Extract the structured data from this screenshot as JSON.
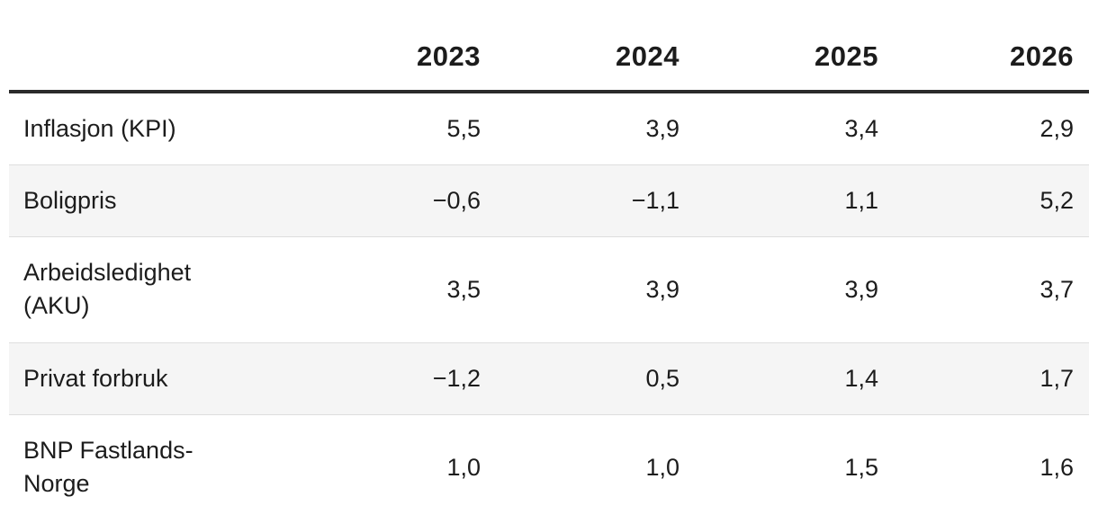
{
  "table": {
    "columns": [
      "2023",
      "2024",
      "2025",
      "2026"
    ],
    "rows": [
      {
        "label": "Inflasjon (KPI)",
        "values": [
          "5,5",
          "3,9",
          "3,4",
          "2,9"
        ]
      },
      {
        "label": "Boligpris",
        "values": [
          "−0,6",
          "−1,1",
          "1,1",
          "5,2"
        ]
      },
      {
        "label": "Arbeidsledighet (AKU)",
        "values": [
          "3,5",
          "3,9",
          "3,9",
          "3,7"
        ]
      },
      {
        "label": "Privat forbruk",
        "values": [
          "−1,2",
          "0,5",
          "1,4",
          "1,7"
        ]
      },
      {
        "label": "BNP Fastlands-Norge",
        "values": [
          "1,0",
          "1,0",
          "1,5",
          "1,6"
        ]
      }
    ]
  }
}
